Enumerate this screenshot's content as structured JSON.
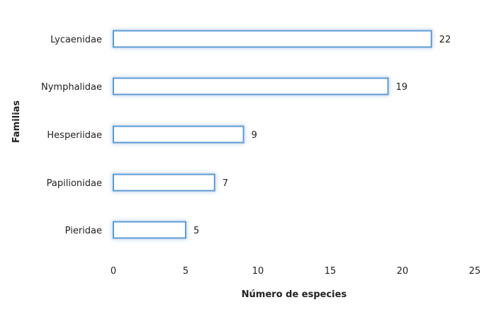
{
  "chart_data": {
    "type": "bar",
    "orientation": "horizontal",
    "categories": [
      "Lycaenidae",
      "Nymphalidae",
      "Hesperiidae",
      "Papilionidae",
      "Pieridae"
    ],
    "values": [
      22,
      19,
      9,
      7,
      5
    ],
    "xlabel": "Número de especies",
    "ylabel": "Familias",
    "xlim": [
      0,
      25
    ],
    "xticks": [
      0,
      5,
      10,
      15,
      20,
      25
    ],
    "grid": false,
    "legend": "none",
    "bar_fill": "#ffffff",
    "bar_stroke": "#5b9bd5",
    "bar_glow": "#9dc3e6"
  }
}
